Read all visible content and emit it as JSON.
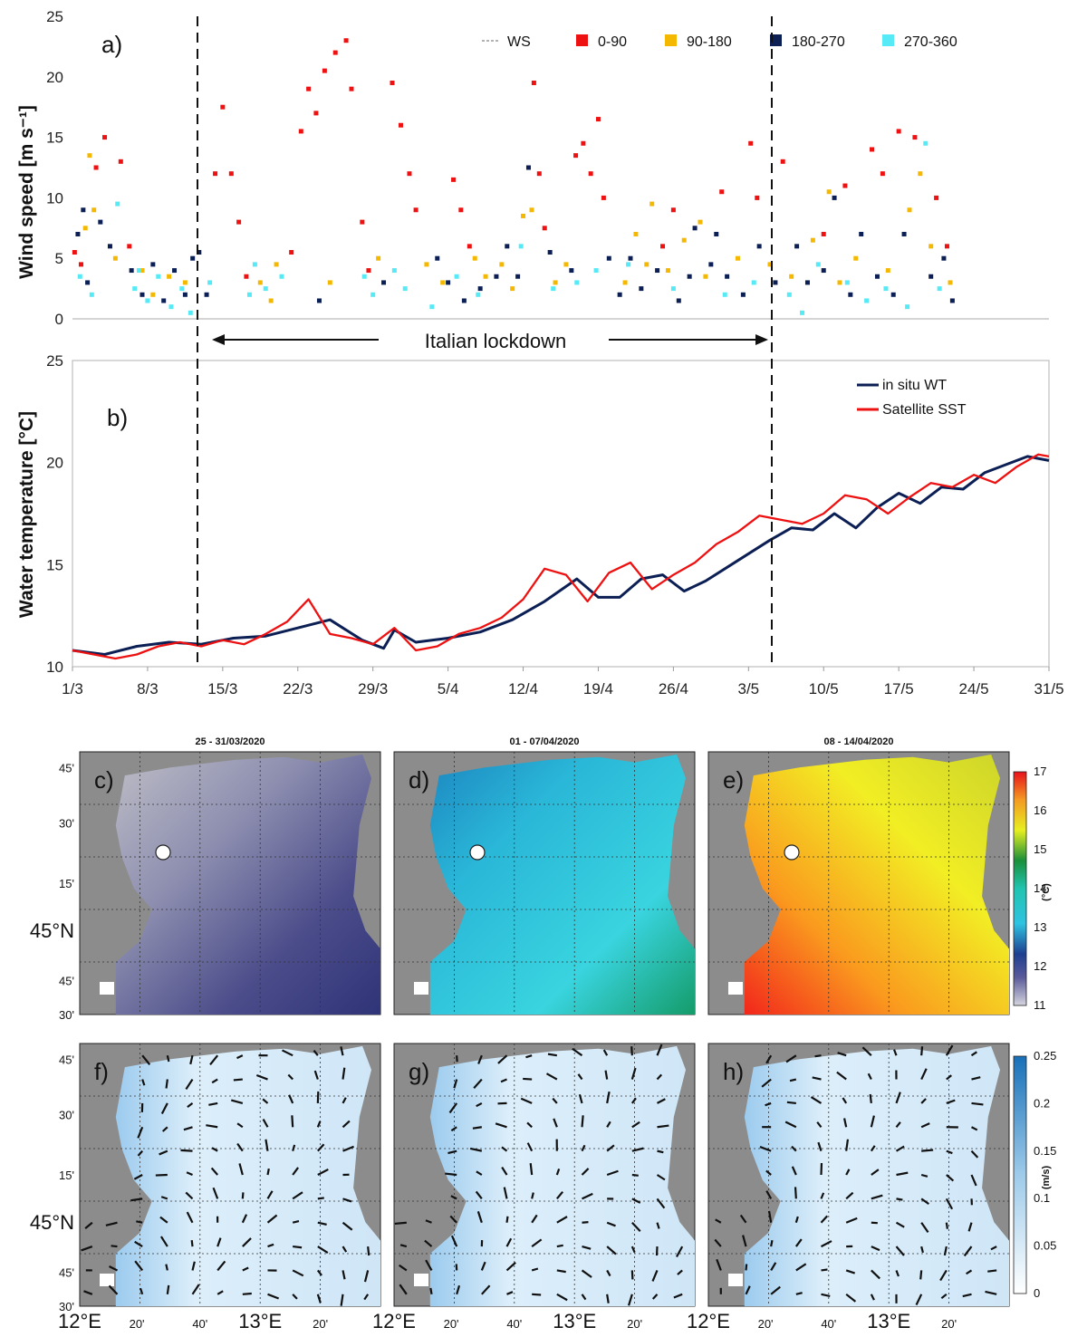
{
  "chart_data": [
    {
      "panel": "a)",
      "type": "scatter",
      "ylabel": "Wind speed [m s⁻¹]",
      "ylim": [
        0,
        25
      ],
      "yticks": [
        0,
        5,
        10,
        15,
        20,
        25
      ],
      "legend": [
        "WS",
        "0-90",
        "90-180",
        "180-270",
        "270-360"
      ],
      "legend_colors": [
        "#999999",
        "#ee1111",
        "#f5b800",
        "#0b1f55",
        "#55eaf5"
      ],
      "annotation": "Italian lockdown",
      "lockdown_days": [
        12.0,
        65.5
      ],
      "series": [
        {
          "name": "0-90",
          "points": [
            [
              0.2,
              5.5
            ],
            [
              0.8,
              4.5
            ],
            [
              2.2,
              12.5
            ],
            [
              3.0,
              15.0
            ],
            [
              4.5,
              13.0
            ],
            [
              5.3,
              6.0
            ],
            [
              13.3,
              12.0
            ],
            [
              14.0,
              17.5
            ],
            [
              14.8,
              12.0
            ],
            [
              15.5,
              8.0
            ],
            [
              16.2,
              3.5
            ],
            [
              20.4,
              5.5
            ],
            [
              21.3,
              15.5
            ],
            [
              22.0,
              19.0
            ],
            [
              22.7,
              17.0
            ],
            [
              23.5,
              20.5
            ],
            [
              24.5,
              22.0
            ],
            [
              25.5,
              23.0
            ],
            [
              26.0,
              19.0
            ],
            [
              27.0,
              8.0
            ],
            [
              27.6,
              4.0
            ],
            [
              29.8,
              19.5
            ],
            [
              30.6,
              16.0
            ],
            [
              31.4,
              12.0
            ],
            [
              32.0,
              9.0
            ],
            [
              35.5,
              11.5
            ],
            [
              36.2,
              9.0
            ],
            [
              37.0,
              6.0
            ],
            [
              43.0,
              19.5
            ],
            [
              43.5,
              12.0
            ],
            [
              44.0,
              7.5
            ],
            [
              46.9,
              13.5
            ],
            [
              47.6,
              14.5
            ],
            [
              48.3,
              12.0
            ],
            [
              49.0,
              16.5
            ],
            [
              49.5,
              10.0
            ],
            [
              55.0,
              6.0
            ],
            [
              56.0,
              9.0
            ],
            [
              60.5,
              10.5
            ],
            [
              63.2,
              14.5
            ],
            [
              63.8,
              10.0
            ],
            [
              66.2,
              13.0
            ],
            [
              70.0,
              7.0
            ],
            [
              72.0,
              11.0
            ],
            [
              74.5,
              14.0
            ],
            [
              75.5,
              12.0
            ],
            [
              77.0,
              15.5
            ],
            [
              78.5,
              15.0
            ],
            [
              80.5,
              10.0
            ],
            [
              81.5,
              6.0
            ]
          ]
        },
        {
          "name": "90-180",
          "points": [
            [
              1.2,
              7.5
            ],
            [
              1.6,
              13.5
            ],
            [
              2.0,
              9.0
            ],
            [
              4.0,
              5.0
            ],
            [
              6.5,
              4.0
            ],
            [
              7.5,
              2.0
            ],
            [
              9.0,
              3.5
            ],
            [
              10.5,
              3.0
            ],
            [
              17.5,
              3.0
            ],
            [
              18.5,
              1.5
            ],
            [
              19.0,
              4.5
            ],
            [
              24.0,
              3.0
            ],
            [
              28.5,
              5.0
            ],
            [
              33.0,
              4.5
            ],
            [
              34.5,
              3.0
            ],
            [
              37.5,
              5.0
            ],
            [
              38.5,
              3.5
            ],
            [
              40.0,
              4.5
            ],
            [
              41.0,
              2.5
            ],
            [
              42.0,
              8.5
            ],
            [
              42.8,
              9.0
            ],
            [
              45.0,
              3.0
            ],
            [
              46.0,
              4.5
            ],
            [
              51.5,
              3.0
            ],
            [
              52.5,
              7.0
            ],
            [
              53.5,
              4.5
            ],
            [
              54.0,
              9.5
            ],
            [
              55.5,
              4.0
            ],
            [
              57.0,
              6.5
            ],
            [
              58.5,
              8.0
            ],
            [
              59.0,
              3.5
            ],
            [
              62.0,
              5.0
            ],
            [
              65.0,
              4.5
            ],
            [
              67.0,
              3.5
            ],
            [
              69.0,
              6.5
            ],
            [
              70.5,
              10.5
            ],
            [
              71.5,
              3.0
            ],
            [
              73.0,
              5.0
            ],
            [
              76.0,
              4.0
            ],
            [
              78.0,
              9.0
            ],
            [
              79.0,
              12.0
            ],
            [
              80.0,
              6.0
            ],
            [
              81.8,
              3.0
            ]
          ]
        },
        {
          "name": "180-270",
          "points": [
            [
              0.5,
              7.0
            ],
            [
              1.0,
              9.0
            ],
            [
              1.4,
              3.0
            ],
            [
              2.6,
              8.0
            ],
            [
              3.5,
              6.0
            ],
            [
              5.5,
              4.0
            ],
            [
              6.5,
              2.0
            ],
            [
              7.5,
              4.5
            ],
            [
              8.5,
              1.5
            ],
            [
              9.5,
              4.0
            ],
            [
              10.5,
              2.0
            ],
            [
              11.2,
              5.0
            ],
            [
              11.8,
              5.5
            ],
            [
              12.5,
              2.0
            ],
            [
              23.0,
              1.5
            ],
            [
              29.0,
              3.0
            ],
            [
              34.0,
              5.0
            ],
            [
              35.0,
              3.0
            ],
            [
              36.5,
              1.5
            ],
            [
              38.0,
              2.5
            ],
            [
              39.5,
              3.5
            ],
            [
              40.5,
              6.0
            ],
            [
              41.5,
              3.5
            ],
            [
              42.5,
              12.5
            ],
            [
              44.5,
              5.5
            ],
            [
              46.5,
              4.0
            ],
            [
              50.0,
              5.0
            ],
            [
              51.0,
              2.0
            ],
            [
              52.0,
              5.0
            ],
            [
              53.0,
              2.5
            ],
            [
              54.5,
              4.0
            ],
            [
              56.5,
              1.5
            ],
            [
              57.5,
              3.5
            ],
            [
              58.0,
              7.5
            ],
            [
              59.5,
              4.5
            ],
            [
              60.0,
              7.0
            ],
            [
              61.0,
              3.5
            ],
            [
              62.5,
              2.0
            ],
            [
              64.0,
              6.0
            ],
            [
              65.5,
              3.0
            ],
            [
              67.5,
              6.0
            ],
            [
              68.5,
              3.0
            ],
            [
              70.0,
              4.0
            ],
            [
              71.0,
              10.0
            ],
            [
              72.5,
              2.0
            ],
            [
              73.5,
              7.0
            ],
            [
              75.0,
              3.5
            ],
            [
              76.5,
              2.0
            ],
            [
              77.5,
              7.0
            ],
            [
              80.0,
              3.5
            ],
            [
              81.2,
              5.0
            ],
            [
              82.0,
              1.5
            ]
          ]
        },
        {
          "name": "270-360",
          "points": [
            [
              0.7,
              3.5
            ],
            [
              1.8,
              2.0
            ],
            [
              4.2,
              9.5
            ],
            [
              5.8,
              2.5
            ],
            [
              6.2,
              4.0
            ],
            [
              7.0,
              1.5
            ],
            [
              8.0,
              3.5
            ],
            [
              9.2,
              1.0
            ],
            [
              10.2,
              2.5
            ],
            [
              11.0,
              0.5
            ],
            [
              12.8,
              3.0
            ],
            [
              16.5,
              2.0
            ],
            [
              17.0,
              4.5
            ],
            [
              18.0,
              2.5
            ],
            [
              19.5,
              3.5
            ],
            [
              27.2,
              3.5
            ],
            [
              28.0,
              2.0
            ],
            [
              30.0,
              4.0
            ],
            [
              31.0,
              2.5
            ],
            [
              33.5,
              1.0
            ],
            [
              35.8,
              3.5
            ],
            [
              37.8,
              2.0
            ],
            [
              41.8,
              6.0
            ],
            [
              44.8,
              2.5
            ],
            [
              47.0,
              3.0
            ],
            [
              48.8,
              4.0
            ],
            [
              51.8,
              4.5
            ],
            [
              56.0,
              2.5
            ],
            [
              60.8,
              2.0
            ],
            [
              63.5,
              3.0
            ],
            [
              66.8,
              2.0
            ],
            [
              68.0,
              0.5
            ],
            [
              69.5,
              4.5
            ],
            [
              72.2,
              3.0
            ],
            [
              74.0,
              1.5
            ],
            [
              75.8,
              2.5
            ],
            [
              77.8,
              1.0
            ],
            [
              79.5,
              14.5
            ],
            [
              80.8,
              2.5
            ]
          ]
        }
      ]
    },
    {
      "panel": "b)",
      "type": "line",
      "ylabel": "Water temperature [°C]",
      "ylim": [
        10,
        25
      ],
      "yticks": [
        10,
        15,
        20,
        25
      ],
      "xticks": [
        "1/3",
        "8/3",
        "15/3",
        "22/3",
        "29/3",
        "5/4",
        "12/4",
        "19/4",
        "26/4",
        "3/5",
        "10/5",
        "17/5",
        "24/5",
        "31/5"
      ],
      "xrange_days": [
        0,
        91
      ],
      "series": [
        {
          "name": "in situ WT",
          "color": "#0b1f55",
          "x": [
            0,
            3,
            6,
            9,
            12,
            15,
            18,
            21,
            24,
            27,
            29,
            30,
            32,
            35,
            38,
            41,
            44,
            47,
            49,
            51,
            53,
            55,
            57,
            59,
            62,
            65,
            67,
            69,
            71,
            73,
            75,
            77,
            79,
            81,
            83,
            85,
            87,
            89,
            91
          ],
          "y": [
            10.8,
            10.6,
            11.0,
            11.2,
            11.1,
            11.4,
            11.5,
            11.9,
            12.3,
            11.3,
            10.9,
            11.8,
            11.2,
            11.4,
            11.7,
            12.3,
            13.2,
            14.3,
            13.4,
            13.4,
            14.3,
            14.5,
            13.7,
            14.2,
            15.2,
            16.2,
            16.8,
            16.7,
            17.5,
            16.8,
            17.8,
            18.5,
            18.0,
            18.8,
            18.7,
            19.5,
            19.9,
            20.3,
            20.1
          ]
        },
        {
          "name": "Satellite SST",
          "color": "#ee1111",
          "x": [
            0,
            2,
            4,
            6,
            8,
            10,
            12,
            14,
            16,
            18,
            20,
            22,
            24,
            26,
            28,
            30,
            32,
            34,
            36,
            38,
            40,
            42,
            44,
            46,
            48,
            50,
            52,
            54,
            56,
            58,
            60,
            62,
            64,
            66,
            68,
            70,
            72,
            74,
            76,
            78,
            80,
            82,
            84,
            86,
            88,
            90,
            91
          ],
          "y": [
            10.8,
            10.6,
            10.4,
            10.6,
            11.0,
            11.2,
            11.0,
            11.3,
            11.1,
            11.6,
            12.2,
            13.3,
            11.6,
            11.4,
            11.1,
            11.9,
            10.8,
            11.0,
            11.6,
            11.9,
            12.4,
            13.3,
            14.8,
            14.5,
            13.2,
            14.6,
            15.1,
            13.8,
            14.5,
            15.1,
            16.0,
            16.6,
            17.4,
            17.2,
            17.0,
            17.5,
            18.4,
            18.2,
            17.5,
            18.3,
            19.0,
            18.8,
            19.4,
            19.0,
            19.8,
            20.4,
            20.3
          ]
        }
      ]
    }
  ],
  "maps": {
    "titles": [
      "25 - 31/03/2020",
      "01 - 07/04/2020",
      "08 - 14/04/2020"
    ],
    "top_labels": [
      "c)",
      "d)",
      "e)"
    ],
    "bottom_labels": [
      "f)",
      "g)",
      "h)"
    ],
    "lat_ticks": [
      "45'",
      "30'",
      "15'",
      "45°N",
      "45'",
      "30'"
    ],
    "lon_ticks": [
      "12°E",
      "20'",
      "40'",
      "13°E",
      "20'"
    ],
    "sst_colorbar": {
      "ticks": [
        "17",
        "16",
        "15",
        "14",
        "13",
        "12",
        "11"
      ],
      "unit": "(°C)"
    },
    "current_colorbar": {
      "ticks": [
        "0.25",
        "0.2",
        "0.15",
        "0.1",
        "0.05",
        "0"
      ],
      "unit": "(m/s)"
    }
  }
}
